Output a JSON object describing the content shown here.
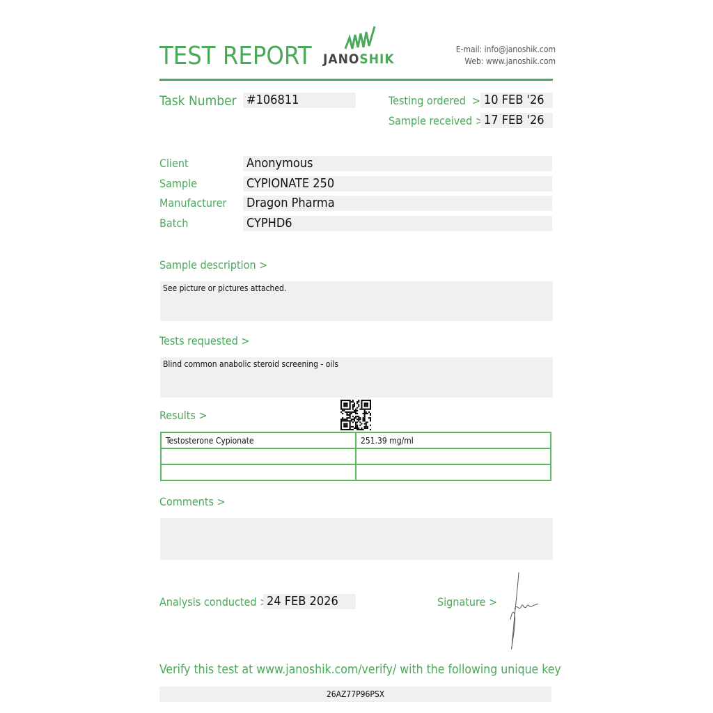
{
  "header": {
    "title": "TEST REPORT",
    "logo_part1": "JANO",
    "logo_part2": "SHIK",
    "email": "E-mail: info@janoshik.com",
    "web": "Web: www.janoshik.com"
  },
  "colors": {
    "accent": "#4aa85a",
    "field_bg": "#f0f0f0"
  },
  "task": {
    "label": "Task Number",
    "value": "#106811"
  },
  "testing_ordered": {
    "label": "Testing ordered  >",
    "value": "10 FEB '26"
  },
  "sample_received": {
    "label": "Sample received >",
    "value": "17 FEB '26"
  },
  "fields": [
    {
      "label": "Client",
      "value": "Anonymous"
    },
    {
      "label": "Sample",
      "value": "CYPIONATE 250"
    },
    {
      "label": "Manufacturer",
      "value": "Dragon Pharma"
    },
    {
      "label": "Batch",
      "value": "CYPHD6"
    }
  ],
  "sample_description": {
    "label": "Sample description >",
    "value": "See picture or pictures attached."
  },
  "tests_requested": {
    "label": "Tests requested >",
    "value": "Blind common anabolic steroid screening - oils"
  },
  "results": {
    "label": "Results >",
    "rows": [
      [
        "Testosterone Cypionate",
        "251.39 mg/ml"
      ],
      [
        "",
        ""
      ],
      [
        "",
        ""
      ]
    ]
  },
  "comments": {
    "label": "Comments >",
    "value": ""
  },
  "analysis": {
    "label": "Analysis conducted >",
    "value": "24 FEB 2026"
  },
  "signature": {
    "label": "Signature >"
  },
  "verify": {
    "text": "Verify this test at www.janoshik.com/verify/ with the following unique key",
    "key": "26AZ77P96PSX"
  }
}
